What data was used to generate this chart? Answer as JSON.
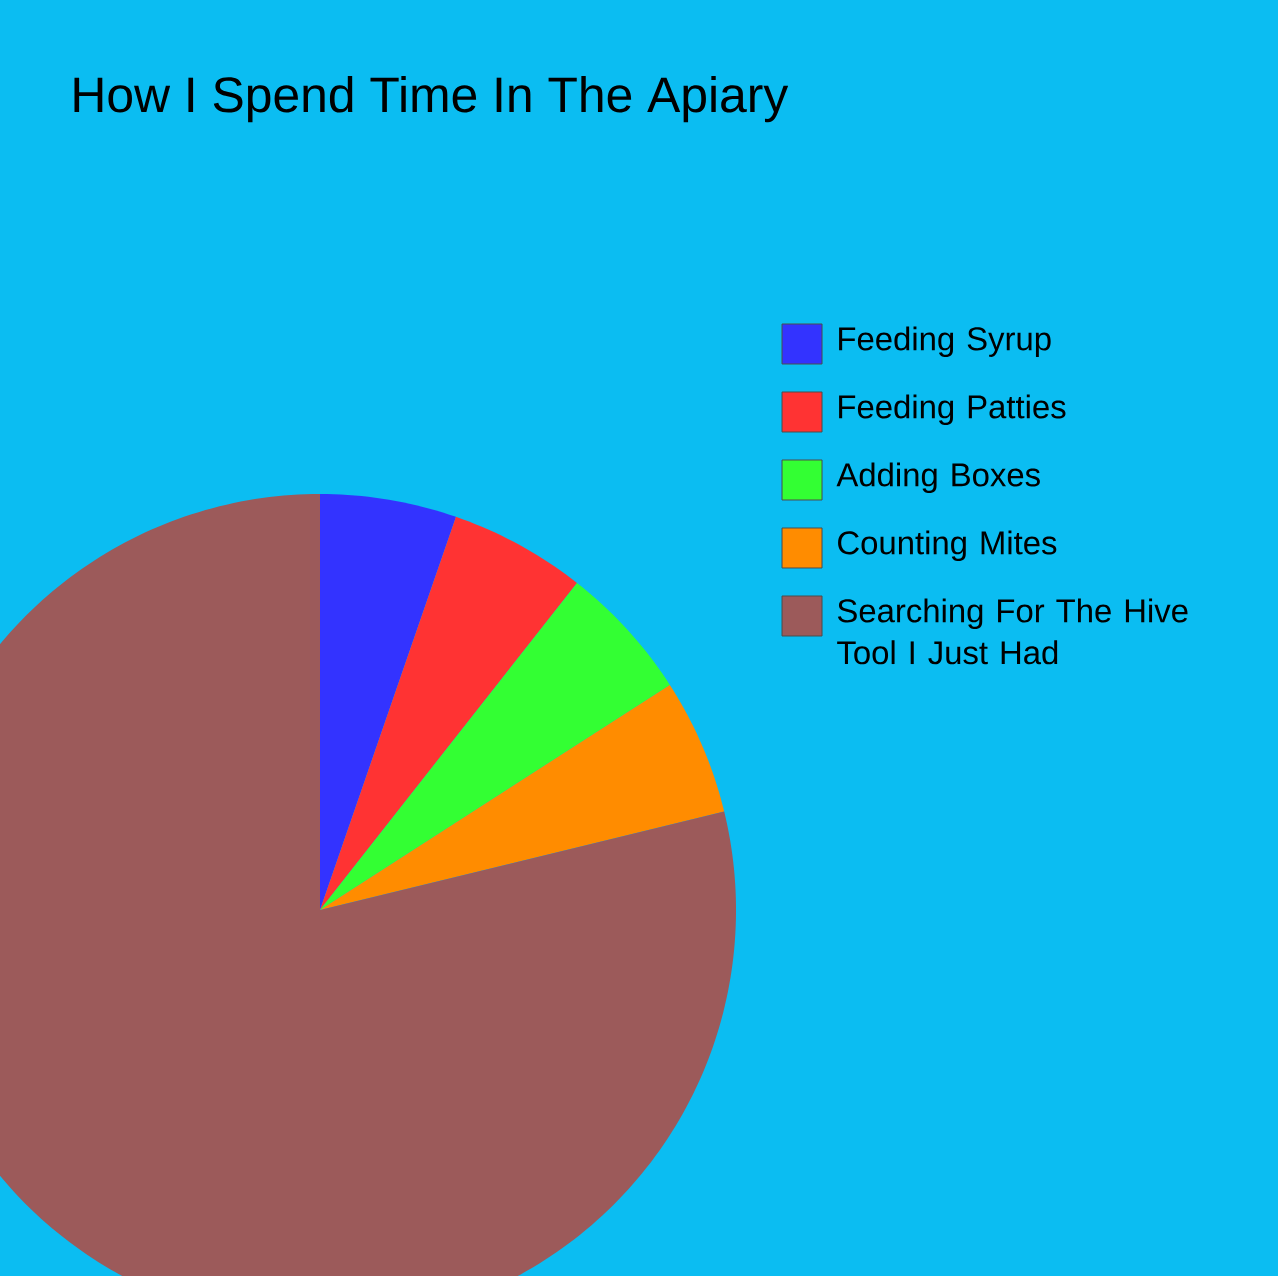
{
  "chart_data": {
    "type": "pie",
    "title": "How I Spend Time In The Apiary",
    "categories": [
      "Feeding Syrup",
      "Feeding Patties",
      "Adding Boxes",
      "Counting Mites",
      "Searching For The Hive Tool I Just Had"
    ],
    "values": [
      5.3,
      5.3,
      5.3,
      5.3,
      78.8
    ],
    "colors": [
      "#3333ff",
      "#ff3333",
      "#33ff33",
      "#ff8c00",
      "#9c5a5a"
    ],
    "legend": "top right"
  }
}
